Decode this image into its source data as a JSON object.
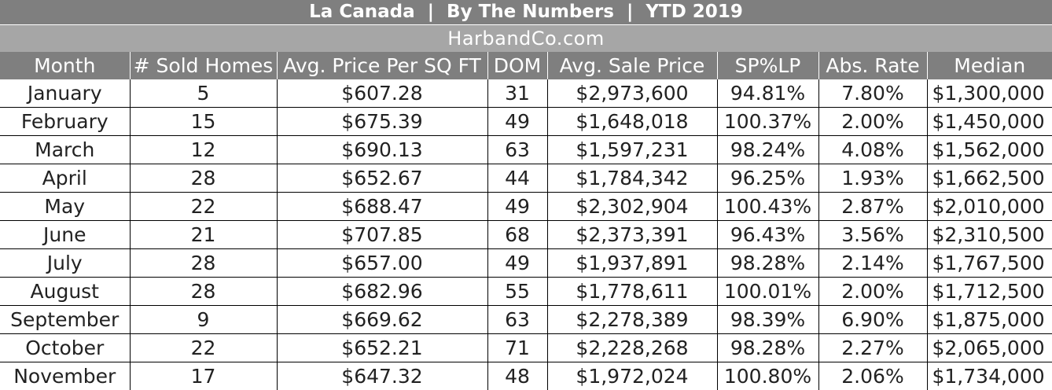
{
  "header": {
    "title": "La Canada  |  By The Numbers  |  YTD 2019",
    "subtitle": "HarbandCo.com"
  },
  "table": {
    "columns": [
      "Month",
      "# Sold Homes",
      "Avg. Price Per SQ FT",
      "DOM",
      "Avg. Sale Price",
      "SP%LP",
      "Abs. Rate",
      "Median"
    ],
    "rows": [
      [
        "January",
        "5",
        "$607.28",
        "31",
        "$2,973,600",
        "94.81%",
        "7.80%",
        "$1,300,000"
      ],
      [
        "February",
        "15",
        "$675.39",
        "49",
        "$1,648,018",
        "100.37%",
        "2.00%",
        "$1,450,000"
      ],
      [
        "March",
        "12",
        "$690.13",
        "63",
        "$1,597,231",
        "98.24%",
        "4.08%",
        "$1,562,000"
      ],
      [
        "April",
        "28",
        "$652.67",
        "44",
        "$1,784,342",
        "96.25%",
        "1.93%",
        "$1,662,500"
      ],
      [
        "May",
        "22",
        "$688.47",
        "49",
        "$2,302,904",
        "100.43%",
        "2.87%",
        "$2,010,000"
      ],
      [
        "June",
        "21",
        "$707.85",
        "68",
        "$2,373,391",
        "96.43%",
        "3.56%",
        "$2,310,500"
      ],
      [
        "July",
        "28",
        "$657.00",
        "49",
        "$1,937,891",
        "98.28%",
        "2.14%",
        "$1,767,500"
      ],
      [
        "August",
        "28",
        "$682.96",
        "55",
        "$1,778,611",
        "100.01%",
        "2.00%",
        "$1,712,500"
      ],
      [
        "September",
        "9",
        "$669.62",
        "63",
        "$2,278,389",
        "98.39%",
        "6.90%",
        "$1,875,000"
      ],
      [
        "October",
        "22",
        "$652.21",
        "71",
        "$2,228,268",
        "98.28%",
        "2.27%",
        "$2,065,000"
      ],
      [
        "November",
        "17",
        "$647.32",
        "48",
        "$1,972,024",
        "100.80%",
        "2.06%",
        "$1,734,000"
      ]
    ]
  }
}
